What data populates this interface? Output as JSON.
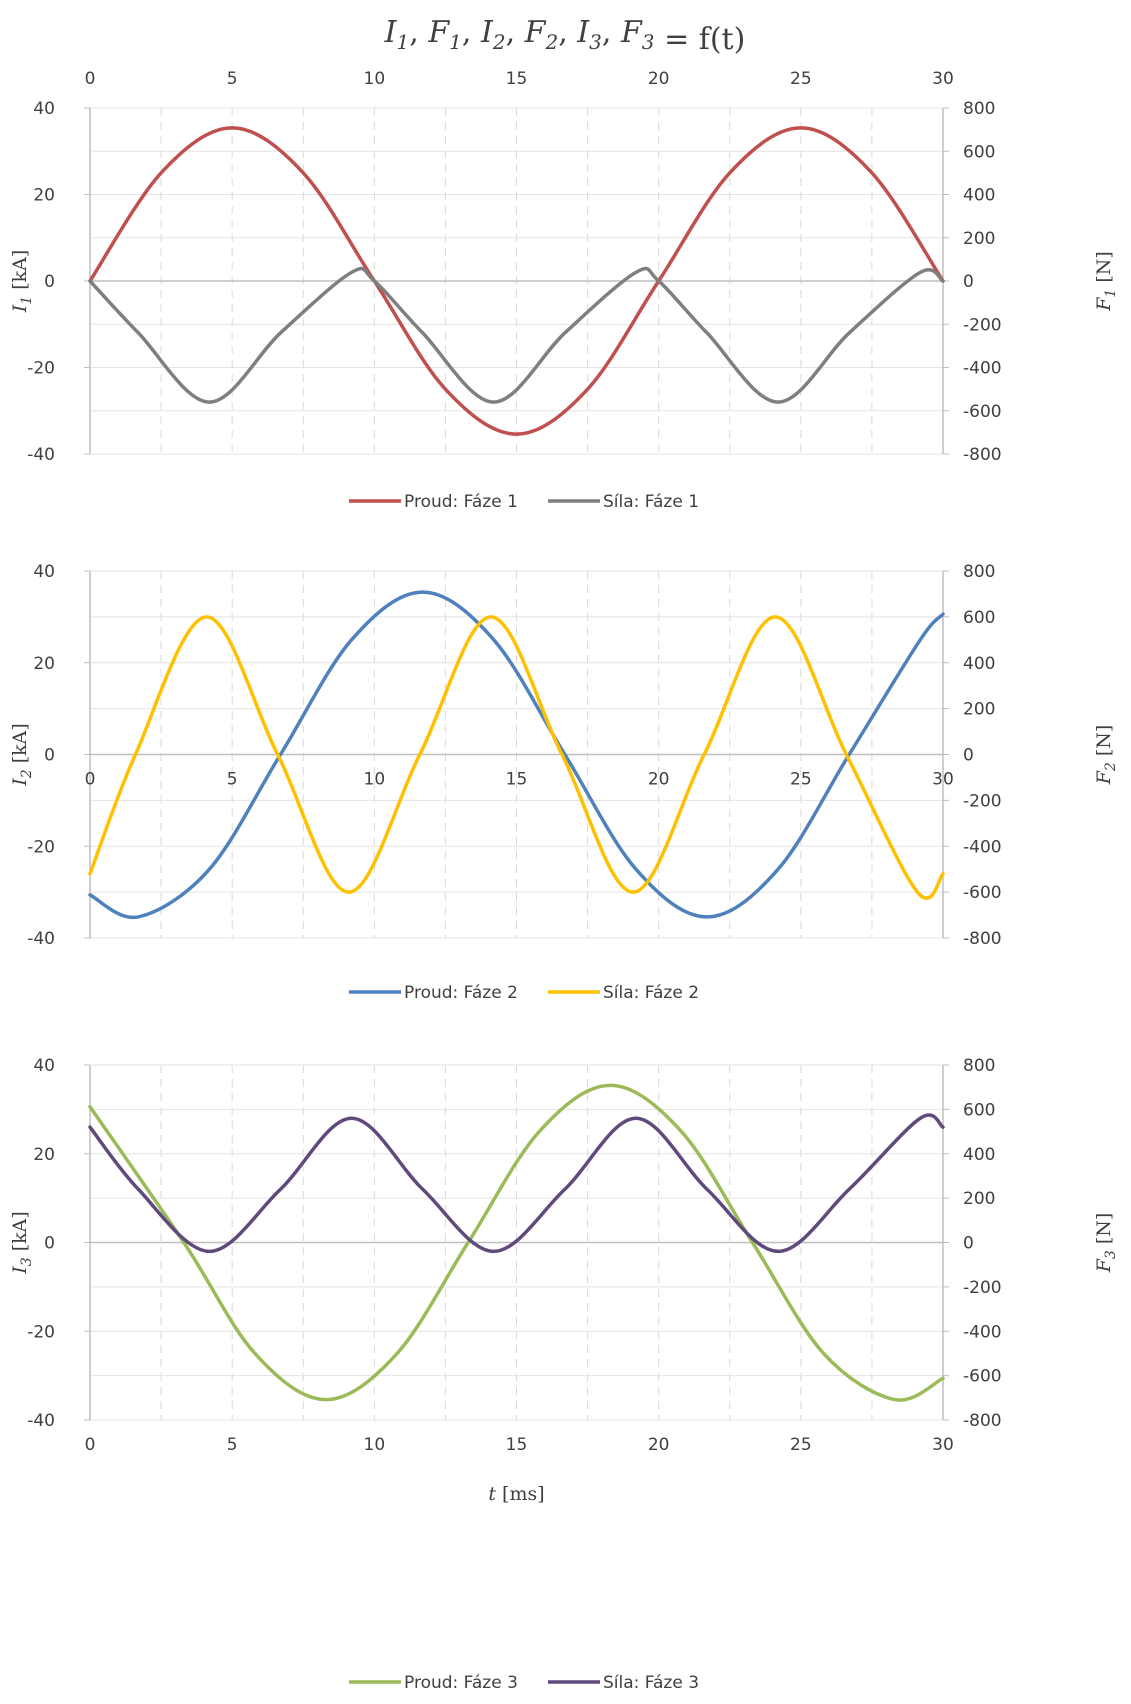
{
  "title": "I1, F1, I2, F2, I3, F3 = f(t)",
  "chart_data": [
    {
      "type": "line",
      "x_top_axis": true,
      "xlim": [
        0,
        30
      ],
      "xticks": [
        0,
        5,
        10,
        15,
        20,
        25,
        30
      ],
      "ylim_left": [
        -40,
        40
      ],
      "yticks_left": [
        -40,
        -20,
        0,
        20,
        40
      ],
      "ylim_right": [
        -800,
        800
      ],
      "yticks_right": [
        -800,
        -600,
        -400,
        -200,
        0,
        200,
        400,
        600,
        800
      ],
      "ylabel_left": "I1 [kA]",
      "ylabel_right": "F1 [N]",
      "xlabel": "",
      "grid": true,
      "legend_position": "bottom",
      "series": [
        {
          "name": "Proud: Fáze 1",
          "axis": "left",
          "color": "#c0504d",
          "x": [
            0,
            2.5,
            5,
            7.5,
            10,
            12.5,
            15,
            17.5,
            20,
            22.5,
            25,
            27.5,
            30
          ],
          "y": [
            0,
            25,
            35.4,
            25,
            0,
            -25,
            -35.4,
            -25,
            0,
            25,
            35.4,
            25,
            0
          ]
        },
        {
          "name": "Síla: Fáze 1",
          "axis": "right",
          "color": "#7f7f7f",
          "x": [
            0,
            1.7,
            4.2,
            6.7,
            9.2,
            10,
            11.7,
            14.2,
            16.7,
            19.2,
            20,
            21.7,
            24.2,
            26.7,
            29.2,
            30
          ],
          "y": [
            0,
            -240,
            -560,
            -240,
            40,
            0,
            -240,
            -560,
            -240,
            40,
            0,
            -240,
            -560,
            -240,
            40,
            0
          ]
        }
      ]
    },
    {
      "type": "line",
      "xlim": [
        0,
        30
      ],
      "xticks": [
        0,
        5,
        10,
        15,
        20,
        25,
        30
      ],
      "x_axis_at_zero": true,
      "ylim_left": [
        -40,
        40
      ],
      "yticks_left": [
        -40,
        -20,
        0,
        20,
        40
      ],
      "ylim_right": [
        -800,
        800
      ],
      "yticks_right": [
        -800,
        -600,
        -400,
        -200,
        0,
        200,
        400,
        600,
        800
      ],
      "ylabel_left": "I2 [kA]",
      "ylabel_right": "F2 [N]",
      "xlabel": "",
      "grid": true,
      "legend_position": "bottom",
      "series": [
        {
          "name": "Proud: Fáze 2",
          "axis": "left",
          "color": "#4f81bd",
          "x": [
            0,
            1.7,
            4.2,
            6.7,
            9.2,
            11.7,
            14.2,
            16.7,
            19.2,
            21.7,
            24.2,
            26.7,
            29.2,
            30
          ],
          "y": [
            -30.6,
            -35.4,
            -25,
            0,
            25,
            35.4,
            25,
            0,
            -25,
            -35.4,
            -25,
            0,
            25,
            30.6
          ]
        },
        {
          "name": "Síla: Fáze 2",
          "axis": "right",
          "color": "#ffc000",
          "x": [
            0,
            1.6,
            4.1,
            6.6,
            9.1,
            11.6,
            14.1,
            16.6,
            19.1,
            21.6,
            24.1,
            26.6,
            29.1,
            30
          ],
          "y": [
            -520,
            0,
            600,
            0,
            -600,
            0,
            600,
            0,
            -600,
            0,
            600,
            0,
            -600,
            -520
          ]
        }
      ]
    },
    {
      "type": "line",
      "xlim": [
        0,
        30
      ],
      "xticks": [
        0,
        5,
        10,
        15,
        20,
        25,
        30
      ],
      "ylim_left": [
        -40,
        40
      ],
      "yticks_left": [
        -40,
        -20,
        0,
        20,
        40
      ],
      "ylim_right": [
        -800,
        800
      ],
      "yticks_right": [
        -800,
        -600,
        -400,
        -200,
        0,
        200,
        400,
        600,
        800
      ],
      "ylabel_left": "I3 [kA]",
      "ylabel_right": "F3 [N]",
      "xlabel": "t [ms]",
      "grid": true,
      "legend_position": "bottom",
      "series": [
        {
          "name": "Proud: Fáze 3",
          "axis": "left",
          "color": "#9bbb59",
          "x": [
            0,
            3.3,
            5.8,
            8.3,
            10.8,
            13.3,
            15.8,
            18.3,
            20.8,
            23.3,
            25.8,
            28.3,
            30
          ],
          "y": [
            30.6,
            0,
            -25,
            -35.4,
            -25,
            0,
            25,
            35.4,
            25,
            0,
            -25,
            -35.4,
            -30.6
          ]
        },
        {
          "name": "Síla: Fáze 3",
          "axis": "right",
          "color": "#604a7b",
          "x": [
            0,
            1.7,
            4.2,
            6.7,
            9.2,
            11.7,
            14.2,
            16.7,
            19.2,
            21.7,
            24.2,
            26.7,
            29.2,
            30
          ],
          "y": [
            520,
            240,
            -40,
            240,
            560,
            240,
            -40,
            240,
            560,
            240,
            -40,
            240,
            560,
            520
          ]
        }
      ]
    }
  ]
}
